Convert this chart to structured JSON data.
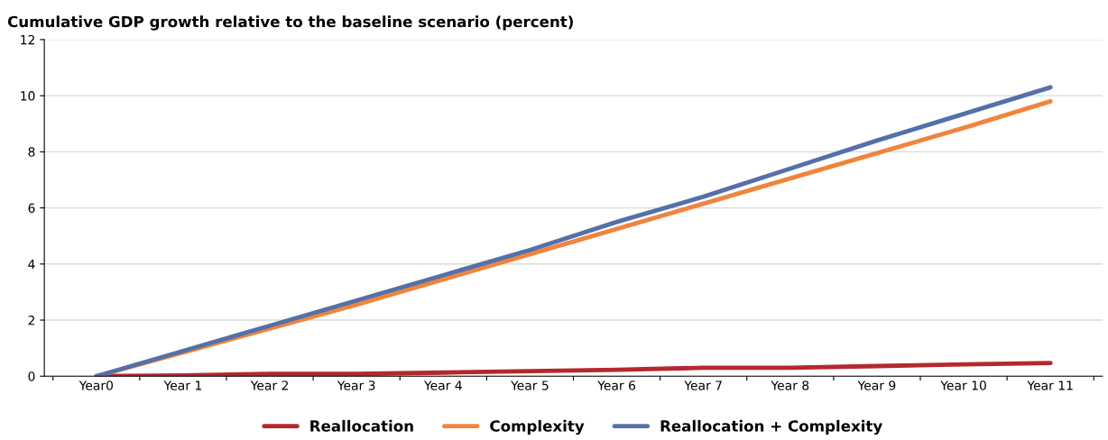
{
  "chart_data": {
    "type": "line",
    "title": "Cumulative GDP growth relative to the baseline scenario (percent)",
    "categories": [
      "Year0",
      "Year 1",
      "Year 2",
      "Year 3",
      "Year 4",
      "Year 5",
      "Year 6",
      "Year 7",
      "Year 8",
      "Year 9",
      "Year 10",
      "Year 11"
    ],
    "series": [
      {
        "name": "Reallocation",
        "color": "#b5282e",
        "values": [
          0,
          0.03,
          0.08,
          0.08,
          0.13,
          0.18,
          0.23,
          0.3,
          0.3,
          0.36,
          0.42,
          0.47
        ]
      },
      {
        "name": "Complexity",
        "color": "#f0843c",
        "values": [
          0,
          0.85,
          1.7,
          2.55,
          3.45,
          4.35,
          5.25,
          6.15,
          7.05,
          7.95,
          8.85,
          9.8
        ]
      },
      {
        "name": "Reallocation + Complexity",
        "color": "#5470a8",
        "values": [
          0,
          0.9,
          1.8,
          2.7,
          3.6,
          4.5,
          5.5,
          6.4,
          7.4,
          8.4,
          9.35,
          10.3
        ]
      }
    ],
    "ylim": [
      0,
      12
    ],
    "yticks": [
      0,
      2,
      4,
      6,
      8,
      10,
      12
    ],
    "grid": "y",
    "legend": "bottom",
    "marker": "none",
    "line_style": "solid"
  }
}
